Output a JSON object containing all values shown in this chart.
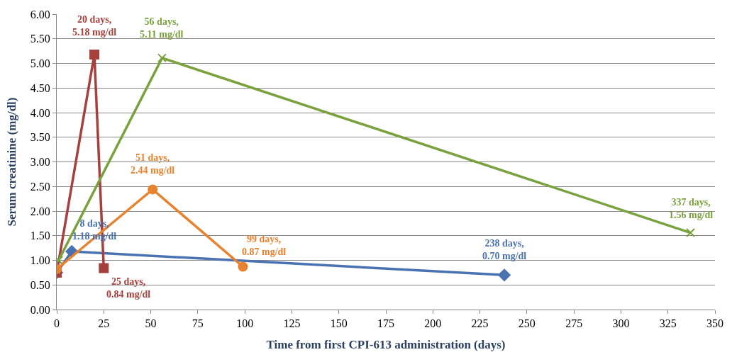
{
  "chart_data": {
    "type": "line",
    "xlabel": "Time from first CPI-613 administration (days)",
    "ylabel": "Serum creatinine (mg/dl)",
    "xlim": [
      0,
      350
    ],
    "xticks": [
      0,
      25,
      50,
      75,
      100,
      125,
      150,
      175,
      200,
      225,
      250,
      275,
      300,
      325,
      350
    ],
    "ylim": [
      0,
      6
    ],
    "yticks": [
      {
        "value": 0,
        "label": "0.00"
      },
      {
        "value": 0.5,
        "label": "0.50"
      },
      {
        "value": 1,
        "label": "1.00"
      },
      {
        "value": 1.5,
        "label": "1.50"
      },
      {
        "value": 2,
        "label": "2.00"
      },
      {
        "value": 2.5,
        "label": "2.50"
      },
      {
        "value": 3,
        "label": "3.00"
      },
      {
        "value": 3.5,
        "label": "3.50"
      },
      {
        "value": 4,
        "label": "4.00"
      },
      {
        "value": 4.5,
        "label": "4.50"
      },
      {
        "value": 5,
        "label": "5.00"
      },
      {
        "value": 5.5,
        "label": "5.50"
      },
      {
        "value": 6,
        "label": "6.00"
      }
    ],
    "grid": "y",
    "line_style": "solid",
    "series": [
      {
        "color": "#4a72b0",
        "marker": "diamond",
        "x": [
          0,
          8,
          238
        ],
        "values": [
          0.75,
          1.18,
          0.7
        ]
      },
      {
        "color": "#a6403c",
        "marker": "square",
        "x": [
          0,
          20,
          25
        ],
        "values": [
          0.75,
          5.18,
          0.84
        ]
      },
      {
        "color": "#79a13d",
        "marker": "cross",
        "x": [
          1,
          56,
          337
        ],
        "values": [
          1.0,
          5.11,
          1.56
        ]
      },
      {
        "color": "#e8822e",
        "marker": "circle",
        "x": [
          0,
          51,
          99
        ],
        "values": [
          0.82,
          2.44,
          0.87
        ]
      }
    ],
    "annotations": [
      {
        "text": "8 days,\n1.18 mg/dl",
        "x": 8,
        "y": 1.18
      },
      {
        "text": "238 days,\n0.70 mg/dl",
        "x": 238,
        "y": 0.7
      },
      {
        "text": "20 days,\n5.18 mg/dl",
        "x": 20,
        "y": 5.18
      },
      {
        "text": "25 days,\n0.84 mg/dl",
        "x": 25,
        "y": 0.84
      },
      {
        "text": "56 days,\n5.11 mg/dl",
        "x": 56,
        "y": 5.11
      },
      {
        "text": "337 days,\n1.56 mg/dl",
        "x": 337,
        "y": 1.56
      },
      {
        "text": "51 days,\n2.44 mg/dl",
        "x": 51,
        "y": 2.44
      },
      {
        "text": "99 days,\n0.87 mg/dl",
        "x": 99,
        "y": 0.87
      }
    ]
  }
}
